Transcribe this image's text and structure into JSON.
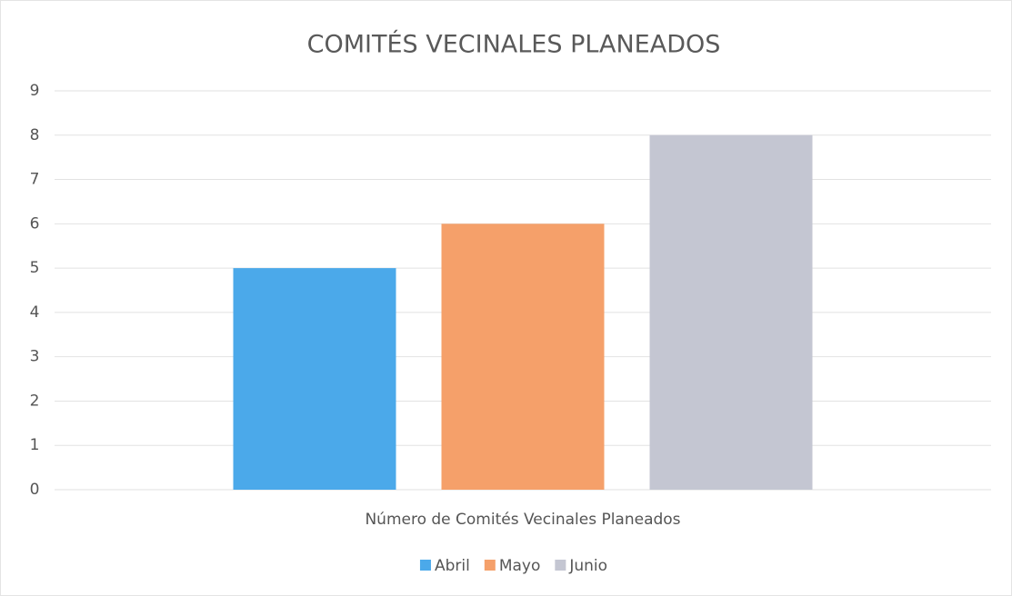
{
  "chart_data": {
    "type": "bar",
    "title": "COMITÉS VECINALES PLANEADOS",
    "categories": [
      "Número de Comités Vecinales Planeados"
    ],
    "series": [
      {
        "name": "Abril",
        "color": "#4ba9ea",
        "values": [
          5
        ]
      },
      {
        "name": "Mayo",
        "color": "#f5a06a",
        "values": [
          6
        ]
      },
      {
        "name": "Junio",
        "color": "#c4c6d2",
        "values": [
          8
        ]
      }
    ],
    "ylim": [
      0,
      9
    ],
    "yticks": [
      0,
      1,
      2,
      3,
      4,
      5,
      6,
      7,
      8,
      9
    ],
    "grid": true,
    "legend": "bottom"
  }
}
